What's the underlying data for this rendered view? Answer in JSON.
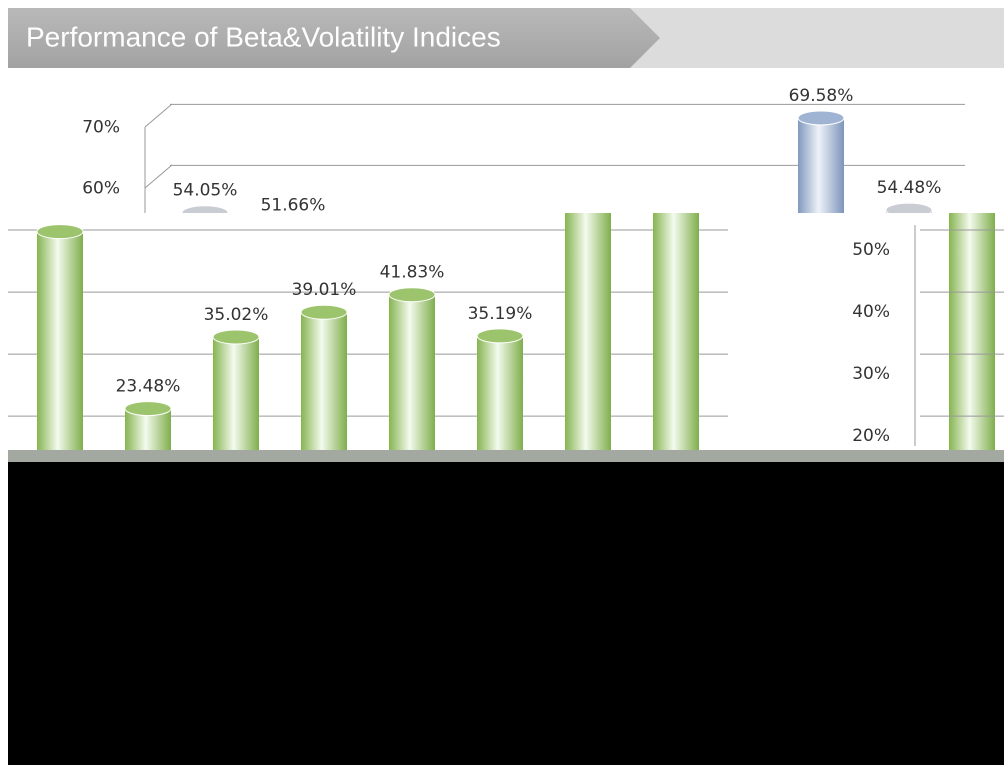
{
  "header": {
    "title": "Performance of Beta&Volatility Indices"
  },
  "chart_data": [
    {
      "type": "bar",
      "categories": [
        null,
        null,
        null,
        null,
        null,
        null,
        null,
        null,
        null
      ],
      "values": [
        54.05,
        51.66,
        null,
        null,
        null,
        null,
        null,
        69.58,
        54.48
      ],
      "value_labels": [
        "54.05%",
        "51.66%",
        null,
        null,
        null,
        null,
        null,
        "69.58%",
        "54.48%"
      ],
      "colors": [
        "#c9ccd3",
        "#c9ccd3",
        null,
        null,
        null,
        null,
        null,
        "#9fb3d3",
        "#c9ccd3"
      ],
      "ylim": [
        54,
        74
      ],
      "yticks": [
        {
          "value": 60,
          "label": "60%"
        },
        {
          "value": 70,
          "label": "70%"
        }
      ],
      "grid": true
    },
    {
      "type": "bar",
      "categories": [
        null,
        null,
        null,
        null,
        null,
        null,
        null,
        null
      ],
      "values": [
        52,
        23.48,
        35.02,
        39.01,
        41.83,
        35.19,
        null,
        null
      ],
      "value_labels": [
        null,
        "23.48%",
        "35.02%",
        "39.01%",
        "41.83%",
        "35.19%",
        null,
        null
      ],
      "color": "#9cc46c",
      "ylim": [
        16,
        55
      ],
      "yticks": [
        {
          "value": 20,
          "label": "20%"
        },
        {
          "value": 30,
          "label": "30%"
        },
        {
          "value": 40,
          "label": "40%"
        },
        {
          "value": 50,
          "label": "50%"
        }
      ],
      "grid": true
    }
  ]
}
